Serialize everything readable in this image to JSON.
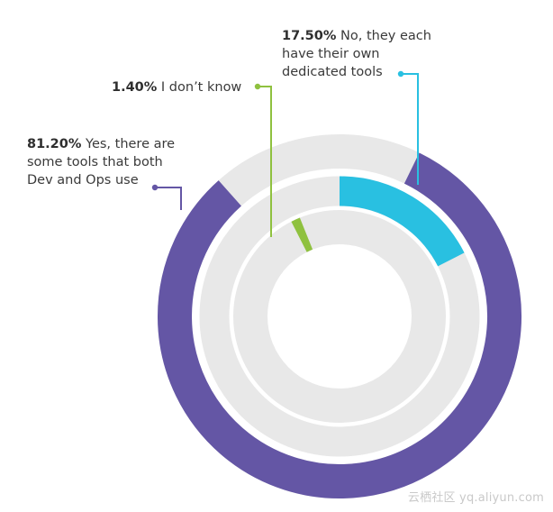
{
  "chart_data": {
    "type": "pie",
    "title": "",
    "style": "concentric radial bars",
    "series": [
      {
        "name": "Yes, there are some tools that both Dev and Ops use",
        "value": 81.2,
        "label_pct": "81.20%",
        "label_lines": [
          "Yes, there are",
          "some tools that both",
          "Dev and Ops use"
        ],
        "color": "#6456a5",
        "ring": "outer"
      },
      {
        "name": "No, they each have their own dedicated tools",
        "value": 17.5,
        "label_pct": "17.50%",
        "label_lines": [
          "No, they each",
          "have their own",
          "dedicated tools"
        ],
        "color": "#29c0e1",
        "ring": "middle"
      },
      {
        "name": "I don't know",
        "value": 1.4,
        "label_pct": "1.40%",
        "label_lines": [
          "I don’t know"
        ],
        "color": "#8fc13f",
        "ring": "inner"
      }
    ],
    "track_color": "#e8e8e8"
  },
  "watermark": "云栖社区 yq.aliyun.com"
}
